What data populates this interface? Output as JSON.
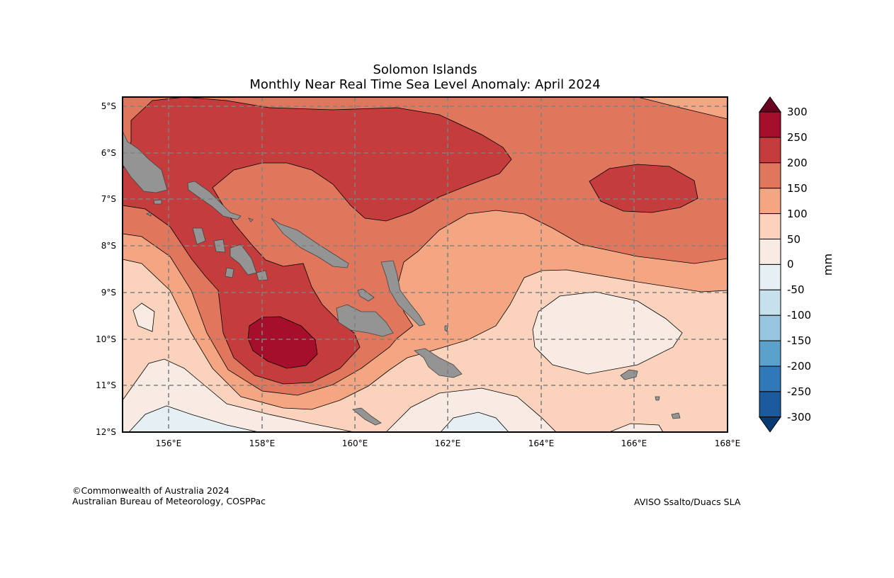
{
  "chart_data": {
    "type": "heatmap",
    "title": [
      "Solomon Islands",
      "Monthly Near Real Time Sea Level Anomaly: April 2024"
    ],
    "xlabel": "",
    "ylabel": "",
    "x_ticks": [
      "156°E",
      "158°E",
      "160°E",
      "162°E",
      "164°E",
      "166°E",
      "168°E"
    ],
    "y_ticks": [
      "5°S",
      "6°S",
      "7°S",
      "8°S",
      "9°S",
      "10°S",
      "11°S",
      "12°S"
    ],
    "xlim": [
      155,
      168
    ],
    "ylim": [
      -12,
      -4.8
    ],
    "grid": true,
    "colorbar": {
      "label": "mm",
      "ticks": [
        "300",
        "250",
        "200",
        "150",
        "100",
        "50",
        "0",
        "-50",
        "-100",
        "-150",
        "-200",
        "-250",
        "-300"
      ],
      "levels": [
        -300,
        -250,
        -200,
        -150,
        -100,
        -50,
        0,
        50,
        100,
        150,
        200,
        250,
        300
      ],
      "colors": [
        "#1b5a9c",
        "#3079b8",
        "#5aa1cb",
        "#97c5df",
        "#c6e0ec",
        "#e6eff3",
        "#f8ebe4",
        "#fbd3bc",
        "#f4a683",
        "#e0765c",
        "#c43c3c",
        "#a50f2b"
      ],
      "extend_low": "#083a74",
      "extend_high": "#6a0020"
    },
    "land_color": "#949494"
  },
  "footer": {
    "copyright": "©Commonwealth of Australia 2024",
    "agency": "Australian Bureau of Meteorology, COSPPac",
    "source": "AVISO Ssalto/Duacs SLA"
  }
}
